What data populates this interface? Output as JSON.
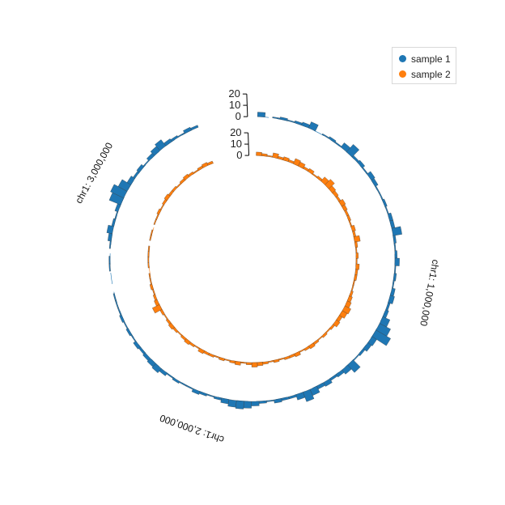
{
  "chart_data": {
    "type": "circular-histogram",
    "title": "",
    "colors": {
      "sample 1": "#1f77b4",
      "sample 2": "#ff7f0e"
    },
    "position_labels": [
      {
        "text": "chr1: 1,000,000",
        "value": 1000000
      },
      {
        "text": "chr1: 2,000,000",
        "value": 2000000
      },
      {
        "text": "chr1: 3,000,000",
        "value": 3000000
      }
    ],
    "track_axes": {
      "sample 1": {
        "ticks": [
          0,
          10,
          20
        ],
        "labels": [
          "0",
          "10",
          "20"
        ],
        "ylim": [
          0,
          20
        ]
      },
      "sample 2": {
        "ticks": [
          0,
          10,
          20
        ],
        "labels": [
          "0",
          "10",
          "20"
        ],
        "ylim": [
          0,
          20
        ]
      }
    },
    "legend": {
      "placement": "top-right",
      "entries": [
        "sample 1",
        "sample 2"
      ]
    },
    "series": [
      {
        "name": "sample 1",
        "color": "#1f77b4",
        "bins": [
          [
            0.0,
            4
          ],
          [
            0.009,
            0
          ],
          [
            0.018,
            1
          ],
          [
            0.027,
            2
          ],
          [
            0.036,
            1
          ],
          [
            0.045,
            2
          ],
          [
            0.054,
            3
          ],
          [
            0.063,
            6
          ],
          [
            0.072,
            0
          ],
          [
            0.081,
            1
          ],
          [
            0.09,
            2
          ],
          [
            0.099,
            1
          ],
          [
            0.108,
            5
          ],
          [
            0.117,
            9
          ],
          [
            0.126,
            2
          ],
          [
            0.135,
            3
          ],
          [
            0.144,
            1
          ],
          [
            0.153,
            4
          ],
          [
            0.162,
            3
          ],
          [
            0.171,
            1
          ],
          [
            0.18,
            1
          ],
          [
            0.189,
            2
          ],
          [
            0.198,
            1
          ],
          [
            0.207,
            3
          ],
          [
            0.216,
            3
          ],
          [
            0.225,
            8
          ],
          [
            0.234,
            2
          ],
          [
            0.243,
            1
          ],
          [
            0.252,
            2
          ],
          [
            0.261,
            4
          ],
          [
            0.27,
            1
          ],
          [
            0.279,
            2
          ],
          [
            0.288,
            1
          ],
          [
            0.297,
            3
          ],
          [
            0.306,
            4
          ],
          [
            0.315,
            2
          ],
          [
            0.324,
            3
          ],
          [
            0.333,
            7
          ],
          [
            0.342,
            11
          ],
          [
            0.351,
            15
          ],
          [
            0.36,
            5
          ],
          [
            0.369,
            4
          ],
          [
            0.378,
            2
          ],
          [
            0.387,
            1
          ],
          [
            0.396,
            9
          ],
          [
            0.405,
            5
          ],
          [
            0.414,
            3
          ],
          [
            0.423,
            2
          ],
          [
            0.432,
            4
          ],
          [
            0.441,
            3
          ],
          [
            0.45,
            6
          ],
          [
            0.459,
            9
          ],
          [
            0.468,
            5
          ],
          [
            0.477,
            2
          ],
          [
            0.486,
            2
          ],
          [
            0.495,
            3
          ],
          [
            0.504,
            1
          ],
          [
            0.513,
            2
          ],
          [
            0.522,
            4
          ],
          [
            0.531,
            6
          ],
          [
            0.54,
            7
          ],
          [
            0.549,
            6
          ],
          [
            0.558,
            4
          ],
          [
            0.567,
            2
          ],
          [
            0.576,
            1
          ],
          [
            0.585,
            2
          ],
          [
            0.594,
            3
          ],
          [
            0.603,
            1
          ],
          [
            0.612,
            1
          ],
          [
            0.621,
            2
          ],
          [
            0.63,
            1
          ],
          [
            0.639,
            3
          ],
          [
            0.648,
            5
          ],
          [
            0.657,
            4
          ],
          [
            0.666,
            3
          ],
          [
            0.675,
            2
          ],
          [
            0.684,
            3
          ],
          [
            0.693,
            1
          ],
          [
            0.702,
            2
          ],
          [
            0.711,
            1
          ],
          [
            0.72,
            2
          ],
          [
            0.729,
            1
          ],
          [
            0.738,
            1
          ],
          [
            0.747,
            1
          ],
          [
            0.756,
            0
          ],
          [
            0.765,
            0
          ],
          [
            0.774,
            0
          ],
          [
            0.783,
            1
          ],
          [
            0.792,
            1
          ],
          [
            0.801,
            0
          ],
          [
            0.81,
            1
          ],
          [
            0.819,
            3
          ],
          [
            0.828,
            5
          ],
          [
            0.837,
            2
          ],
          [
            0.846,
            1
          ],
          [
            0.855,
            3
          ],
          [
            0.864,
            11
          ],
          [
            0.873,
            13
          ],
          [
            0.882,
            9
          ],
          [
            0.891,
            4
          ],
          [
            0.9,
            2
          ],
          [
            0.909,
            3
          ],
          [
            0.918,
            1
          ],
          [
            0.927,
            3
          ],
          [
            0.936,
            5
          ],
          [
            0.945,
            7
          ],
          [
            0.954,
            3
          ],
          [
            0.963,
            2
          ],
          [
            0.972,
            1
          ],
          [
            0.981,
            3
          ],
          [
            0.99,
            2
          ]
        ]
      },
      {
        "name": "sample 2",
        "color": "#ff7f0e",
        "bins": [
          [
            0.0,
            3
          ],
          [
            0.009,
            2
          ],
          [
            0.018,
            1
          ],
          [
            0.027,
            4
          ],
          [
            0.036,
            2
          ],
          [
            0.045,
            3
          ],
          [
            0.054,
            2
          ],
          [
            0.063,
            5
          ],
          [
            0.072,
            4
          ],
          [
            0.081,
            2
          ],
          [
            0.09,
            3
          ],
          [
            0.099,
            1
          ],
          [
            0.108,
            2
          ],
          [
            0.117,
            5
          ],
          [
            0.126,
            7
          ],
          [
            0.135,
            4
          ],
          [
            0.144,
            3
          ],
          [
            0.153,
            2
          ],
          [
            0.162,
            4
          ],
          [
            0.171,
            3
          ],
          [
            0.18,
            2
          ],
          [
            0.189,
            2
          ],
          [
            0.198,
            1
          ],
          [
            0.207,
            3
          ],
          [
            0.216,
            2
          ],
          [
            0.225,
            5
          ],
          [
            0.234,
            2
          ],
          [
            0.243,
            1
          ],
          [
            0.252,
            2
          ],
          [
            0.261,
            1
          ],
          [
            0.27,
            3
          ],
          [
            0.279,
            2
          ],
          [
            0.288,
            2
          ],
          [
            0.297,
            1
          ],
          [
            0.306,
            1
          ],
          [
            0.315,
            2
          ],
          [
            0.324,
            3
          ],
          [
            0.333,
            4
          ],
          [
            0.342,
            6
          ],
          [
            0.351,
            5
          ],
          [
            0.36,
            3
          ],
          [
            0.369,
            4
          ],
          [
            0.378,
            2
          ],
          [
            0.387,
            1
          ],
          [
            0.396,
            2
          ],
          [
            0.405,
            1
          ],
          [
            0.414,
            2
          ],
          [
            0.423,
            3
          ],
          [
            0.432,
            2
          ],
          [
            0.441,
            1
          ],
          [
            0.45,
            3
          ],
          [
            0.459,
            2
          ],
          [
            0.468,
            2
          ],
          [
            0.477,
            1
          ],
          [
            0.486,
            2
          ],
          [
            0.495,
            1
          ],
          [
            0.504,
            2
          ],
          [
            0.513,
            3
          ],
          [
            0.522,
            4
          ],
          [
            0.531,
            2
          ],
          [
            0.54,
            1
          ],
          [
            0.549,
            3
          ],
          [
            0.558,
            2
          ],
          [
            0.567,
            1
          ],
          [
            0.576,
            2
          ],
          [
            0.585,
            1
          ],
          [
            0.594,
            2
          ],
          [
            0.603,
            2
          ],
          [
            0.612,
            3
          ],
          [
            0.621,
            1
          ],
          [
            0.63,
            2
          ],
          [
            0.639,
            3
          ],
          [
            0.648,
            2
          ],
          [
            0.657,
            1
          ],
          [
            0.666,
            2
          ],
          [
            0.675,
            3
          ],
          [
            0.684,
            2
          ],
          [
            0.693,
            1
          ],
          [
            0.702,
            2
          ],
          [
            0.711,
            7
          ],
          [
            0.72,
            3
          ],
          [
            0.729,
            2
          ],
          [
            0.738,
            1
          ],
          [
            0.747,
            2
          ],
          [
            0.756,
            1
          ],
          [
            0.765,
            1
          ],
          [
            0.774,
            0
          ],
          [
            0.783,
            1
          ],
          [
            0.792,
            1
          ],
          [
            0.801,
            1
          ],
          [
            0.81,
            1
          ],
          [
            0.819,
            0
          ],
          [
            0.828,
            1
          ],
          [
            0.837,
            1
          ],
          [
            0.846,
            0
          ],
          [
            0.855,
            1
          ],
          [
            0.864,
            1
          ],
          [
            0.873,
            2
          ],
          [
            0.882,
            1
          ],
          [
            0.891,
            2
          ],
          [
            0.9,
            3
          ],
          [
            0.909,
            2
          ],
          [
            0.918,
            2
          ],
          [
            0.927,
            1
          ],
          [
            0.936,
            2
          ],
          [
            0.945,
            3
          ],
          [
            0.954,
            2
          ],
          [
            0.963,
            1
          ],
          [
            0.972,
            2
          ],
          [
            0.981,
            3
          ],
          [
            0.99,
            2
          ]
        ]
      }
    ]
  }
}
